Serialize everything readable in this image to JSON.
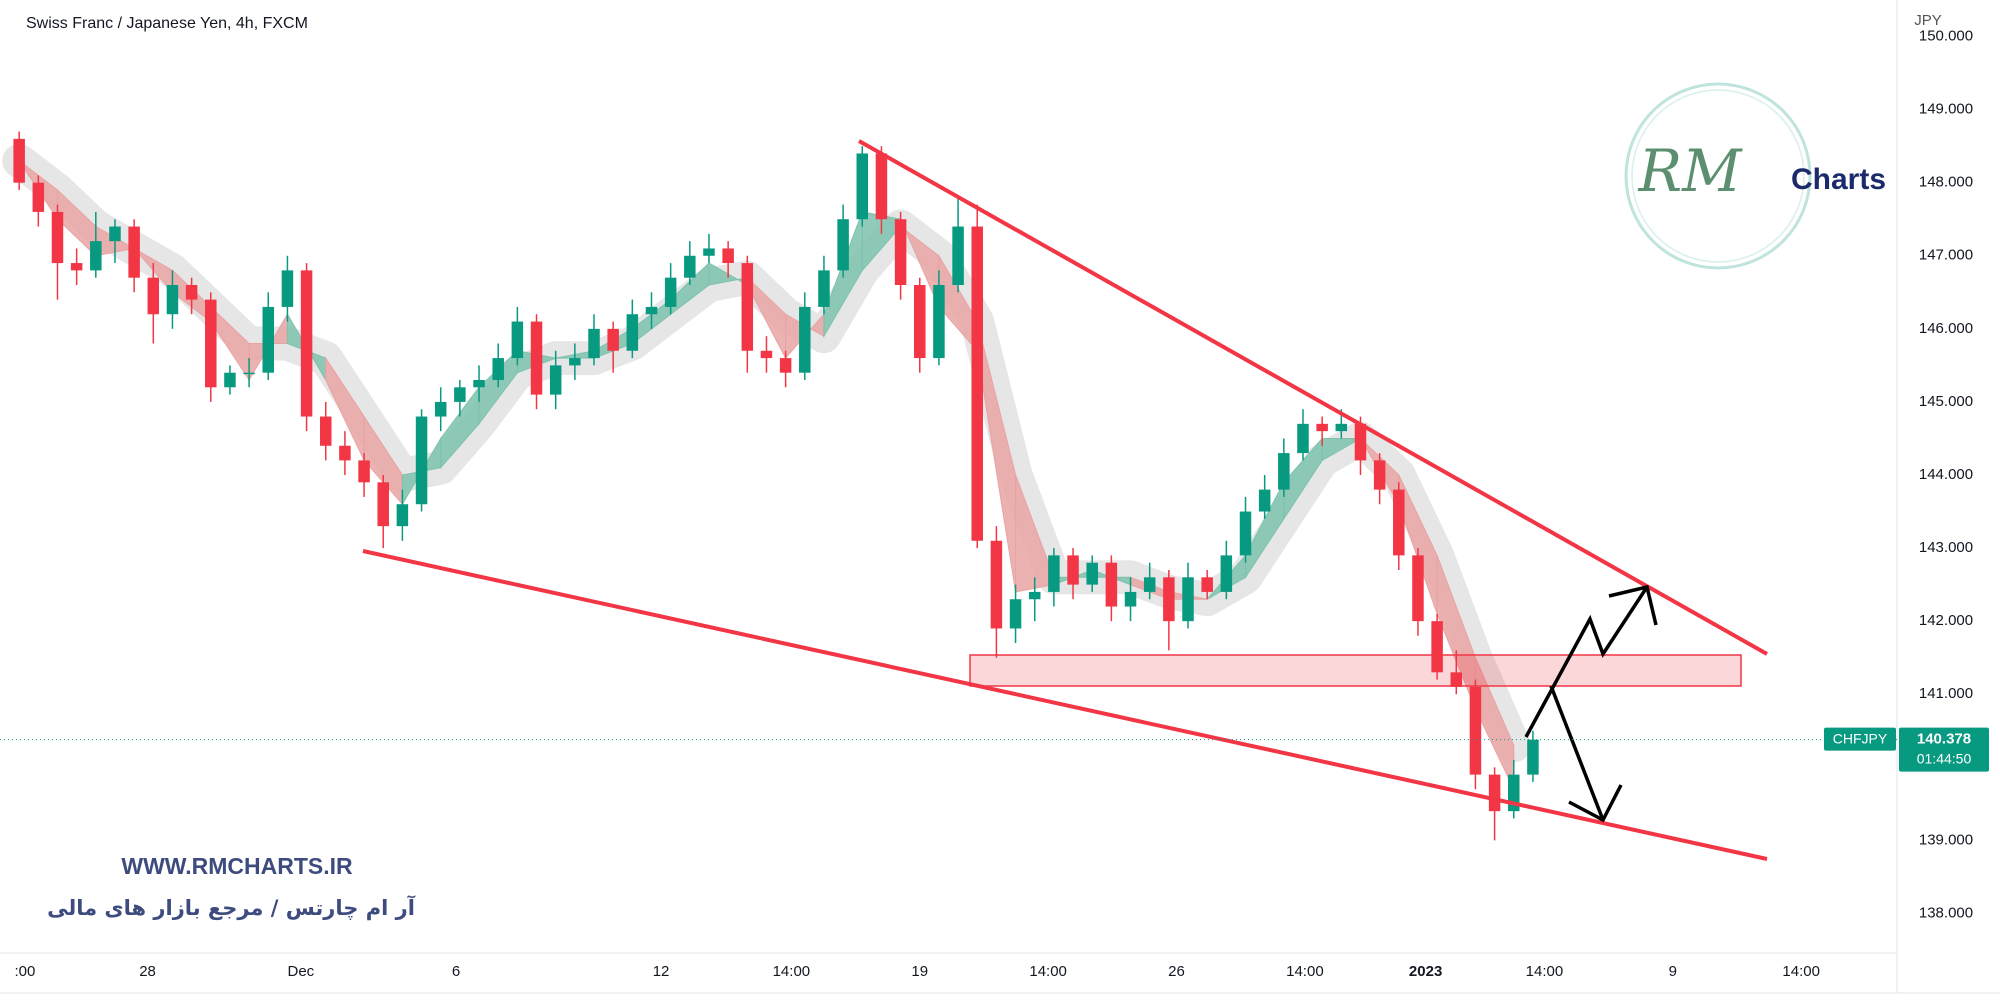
{
  "chart_data": {
    "type": "candlestick",
    "title": "Swiss Franc / Japanese Yen, 4h, FXCM",
    "currency": "JPY",
    "symbol": "CHFJPY",
    "countdown": "01:44:50",
    "watermark": "WWW.RMCHARTS.IR",
    "watermark_fa": "آر ام چارتس / مرجع بازار های مالی",
    "logo": {
      "mark": "RM",
      "text": "Charts"
    },
    "up_color": "#089981",
    "down_color": "#f23645",
    "ribbon_up_color": "#7cc2ae",
    "ribbon_down_color": "#e9a3a3",
    "xlim": [
      -1,
      98
    ],
    "ylim": [
      137.5,
      150.5
    ],
    "yticks": [
      {
        "value": 138,
        "label": "138.000"
      },
      {
        "value": 139,
        "label": "139.000"
      },
      {
        "value": 140,
        "label": "140.000"
      },
      {
        "value": 141,
        "label": "141.000"
      },
      {
        "value": 142,
        "label": "142.000"
      },
      {
        "value": 143,
        "label": "143.000"
      },
      {
        "value": 144,
        "label": "144.000"
      },
      {
        "value": 145,
        "label": "145.000"
      },
      {
        "value": 146,
        "label": "146.000"
      },
      {
        "value": 147,
        "label": "147.000"
      },
      {
        "value": 148,
        "label": "148.000"
      },
      {
        "value": 149,
        "label": "149.000"
      },
      {
        "value": 150,
        "label": "150.000"
      }
    ],
    "xticks": [
      {
        "value": 0.3,
        "label": ":00"
      },
      {
        "value": 6.7,
        "label": "28"
      },
      {
        "value": 14.7,
        "label": "Dec"
      },
      {
        "value": 22.8,
        "label": "6"
      },
      {
        "value": 33.5,
        "label": "12"
      },
      {
        "value": 40.3,
        "label": "14:00"
      },
      {
        "value": 47,
        "label": "19"
      },
      {
        "value": 53.7,
        "label": "14:00"
      },
      {
        "value": 60.4,
        "label": "26"
      },
      {
        "value": 67.1,
        "label": "14:00"
      },
      {
        "value": 73.4,
        "label": "2023"
      },
      {
        "value": 79.6,
        "label": "14:00"
      },
      {
        "value": 86.3,
        "label": "9"
      },
      {
        "value": 93,
        "label": "14:00"
      }
    ],
    "series": [
      {
        "name": "CHFJPY",
        "ohlc": [
          [
            148.6,
            148.7,
            147.9,
            148.0
          ],
          [
            148.0,
            148.1,
            147.4,
            147.6
          ],
          [
            147.6,
            147.7,
            146.4,
            146.9
          ],
          [
            146.9,
            147.1,
            146.6,
            146.8
          ],
          [
            146.8,
            147.6,
            146.7,
            147.2
          ],
          [
            147.2,
            147.5,
            146.9,
            147.4
          ],
          [
            147.4,
            147.5,
            146.5,
            146.7
          ],
          [
            146.7,
            146.9,
            145.8,
            146.2
          ],
          [
            146.2,
            146.8,
            146.0,
            146.6
          ],
          [
            146.6,
            146.7,
            146.2,
            146.4
          ],
          [
            146.4,
            146.5,
            145.0,
            145.2
          ],
          [
            145.2,
            145.5,
            145.1,
            145.4
          ],
          [
            145.4,
            145.6,
            145.2,
            145.4
          ],
          [
            145.4,
            146.5,
            145.3,
            146.3
          ],
          [
            146.3,
            147.0,
            146.1,
            146.8
          ],
          [
            146.8,
            146.9,
            144.6,
            144.8
          ],
          [
            144.8,
            145.0,
            144.2,
            144.4
          ],
          [
            144.4,
            144.6,
            144.0,
            144.2
          ],
          [
            144.2,
            144.3,
            143.7,
            143.9
          ],
          [
            143.9,
            144.0,
            143.0,
            143.3
          ],
          [
            143.3,
            143.8,
            143.1,
            143.6
          ],
          [
            143.6,
            144.9,
            143.5,
            144.8
          ],
          [
            144.8,
            145.2,
            144.6,
            145.0
          ],
          [
            145.0,
            145.3,
            144.8,
            145.2
          ],
          [
            145.2,
            145.5,
            145.0,
            145.3
          ],
          [
            145.3,
            145.8,
            145.2,
            145.6
          ],
          [
            145.6,
            146.3,
            145.5,
            146.1
          ],
          [
            146.1,
            146.2,
            144.9,
            145.1
          ],
          [
            145.1,
            145.7,
            144.9,
            145.5
          ],
          [
            145.5,
            145.8,
            145.3,
            145.6
          ],
          [
            145.6,
            146.2,
            145.5,
            146.0
          ],
          [
            146.0,
            146.1,
            145.4,
            145.7
          ],
          [
            145.7,
            146.4,
            145.6,
            146.2
          ],
          [
            146.2,
            146.5,
            146.0,
            146.3
          ],
          [
            146.3,
            146.9,
            146.2,
            146.7
          ],
          [
            146.7,
            147.2,
            146.6,
            147.0
          ],
          [
            147.0,
            147.3,
            146.9,
            147.1
          ],
          [
            147.1,
            147.2,
            146.7,
            146.9
          ],
          [
            146.9,
            147.0,
            145.4,
            145.7
          ],
          [
            145.7,
            145.9,
            145.4,
            145.6
          ],
          [
            145.6,
            145.7,
            145.2,
            145.4
          ],
          [
            145.4,
            146.5,
            145.3,
            146.3
          ],
          [
            146.3,
            147.0,
            146.2,
            146.8
          ],
          [
            146.8,
            147.7,
            146.7,
            147.5
          ],
          [
            147.5,
            148.5,
            147.4,
            148.4
          ],
          [
            148.4,
            148.5,
            147.3,
            147.5
          ],
          [
            147.5,
            147.6,
            146.4,
            146.6
          ],
          [
            146.6,
            146.7,
            145.4,
            145.6
          ],
          [
            145.6,
            146.8,
            145.5,
            146.6
          ],
          [
            146.6,
            147.8,
            146.5,
            147.4
          ],
          [
            147.4,
            147.7,
            143.0,
            143.1
          ],
          [
            143.1,
            143.3,
            141.5,
            141.9
          ],
          [
            141.9,
            142.5,
            141.7,
            142.3
          ],
          [
            142.3,
            142.6,
            142.0,
            142.4
          ],
          [
            142.4,
            143.0,
            142.2,
            142.9
          ],
          [
            142.9,
            143.0,
            142.3,
            142.5
          ],
          [
            142.5,
            142.9,
            142.4,
            142.8
          ],
          [
            142.8,
            142.9,
            142.0,
            142.2
          ],
          [
            142.2,
            142.6,
            142.0,
            142.4
          ],
          [
            142.4,
            142.8,
            142.3,
            142.6
          ],
          [
            142.6,
            142.7,
            141.6,
            142.0
          ],
          [
            142.0,
            142.8,
            141.9,
            142.6
          ],
          [
            142.6,
            142.7,
            142.3,
            142.4
          ],
          [
            142.4,
            143.1,
            142.3,
            142.9
          ],
          [
            142.9,
            143.7,
            142.8,
            143.5
          ],
          [
            143.5,
            144.0,
            143.4,
            143.8
          ],
          [
            143.8,
            144.5,
            143.7,
            144.3
          ],
          [
            144.3,
            144.9,
            144.2,
            144.7
          ],
          [
            144.7,
            144.8,
            144.4,
            144.6
          ],
          [
            144.6,
            144.9,
            144.5,
            144.7
          ],
          [
            144.7,
            144.8,
            144.0,
            144.2
          ],
          [
            144.2,
            144.3,
            143.6,
            143.8
          ],
          [
            143.8,
            143.9,
            142.7,
            142.9
          ],
          [
            142.9,
            143.0,
            141.8,
            142.0
          ],
          [
            142.0,
            142.1,
            141.2,
            141.3
          ],
          [
            141.3,
            141.6,
            141.0,
            141.1
          ],
          [
            141.1,
            141.2,
            139.7,
            139.9
          ],
          [
            139.9,
            140.0,
            139.0,
            139.4
          ],
          [
            139.4,
            140.1,
            139.3,
            139.9
          ],
          [
            139.9,
            140.5,
            139.8,
            140.378
          ]
        ]
      }
    ],
    "ribbon": {
      "x": [
        0,
        2,
        4,
        6,
        8,
        10,
        12,
        14,
        16,
        18,
        20,
        22,
        24,
        26,
        28,
        30,
        32,
        34,
        36,
        38,
        40,
        42,
        44,
        46,
        48,
        50,
        52,
        54,
        56,
        58,
        60,
        62,
        64,
        66,
        68,
        70,
        72,
        74,
        76,
        78
      ],
      "fast": [
        148.3,
        147.5,
        147.0,
        147.1,
        146.5,
        146.1,
        145.3,
        146.2,
        145.3,
        144.2,
        143.6,
        144.5,
        145.2,
        145.7,
        145.6,
        145.7,
        146.0,
        146.4,
        146.9,
        146.6,
        145.6,
        146.2,
        147.6,
        147.5,
        146.3,
        145.7,
        142.4,
        142.5,
        142.7,
        142.5,
        142.3,
        142.3,
        142.9,
        143.9,
        144.5,
        144.5,
        143.6,
        142.1,
        140.8,
        139.7
      ],
      "slow": [
        148.3,
        147.9,
        147.4,
        147.1,
        146.8,
        146.3,
        145.8,
        145.8,
        145.6,
        144.8,
        144.0,
        144.1,
        144.7,
        145.4,
        145.6,
        145.6,
        145.8,
        146.2,
        146.6,
        146.7,
        146.2,
        145.9,
        146.8,
        147.4,
        147.0,
        146.1,
        144.0,
        142.6,
        142.6,
        142.6,
        142.4,
        142.3,
        142.6,
        143.4,
        144.2,
        144.5,
        144.0,
        142.9,
        141.5,
        140.3
      ]
    }
  }
}
